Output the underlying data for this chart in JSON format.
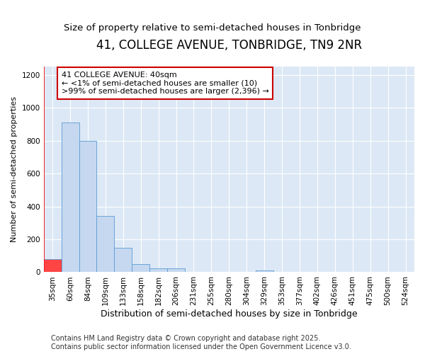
{
  "title1": "41, COLLEGE AVENUE, TONBRIDGE, TN9 2NR",
  "title2": "Size of property relative to semi-detached houses in Tonbridge",
  "xlabel": "Distribution of semi-detached houses by size in Tonbridge",
  "ylabel": "Number of semi-detached properties",
  "categories": [
    "35sqm",
    "60sqm",
    "84sqm",
    "109sqm",
    "133sqm",
    "158sqm",
    "182sqm",
    "206sqm",
    "231sqm",
    "255sqm",
    "280sqm",
    "304sqm",
    "329sqm",
    "353sqm",
    "377sqm",
    "402sqm",
    "426sqm",
    "451sqm",
    "475sqm",
    "500sqm",
    "524sqm"
  ],
  "values": [
    80,
    910,
    800,
    340,
    150,
    50,
    25,
    25,
    0,
    0,
    0,
    0,
    10,
    0,
    0,
    0,
    0,
    0,
    0,
    0,
    0
  ],
  "bar_color": "#c5d8f0",
  "bar_edge_color": "#5b9bd5",
  "highlight_color": "#ff4444",
  "annotation_text": "41 COLLEGE AVENUE: 40sqm\n← <1% of semi-detached houses are smaller (10)\n>99% of semi-detached houses are larger (2,396) →",
  "annotation_box_color": "#ffffff",
  "annotation_border_color": "#cc0000",
  "footer_text": "Contains HM Land Registry data © Crown copyright and database right 2025.\nContains public sector information licensed under the Open Government Licence v3.0.",
  "ylim": [
    0,
    1250
  ],
  "yticks": [
    0,
    200,
    400,
    600,
    800,
    1000,
    1200
  ],
  "fig_bg_color": "#ffffff",
  "plot_bg_color": "#dce8f5",
  "grid_color": "#ffffff",
  "title1_fontsize": 12,
  "title2_fontsize": 9.5,
  "xlabel_fontsize": 9,
  "ylabel_fontsize": 8,
  "tick_fontsize": 7.5,
  "footer_fontsize": 7,
  "ann_fontsize": 8
}
